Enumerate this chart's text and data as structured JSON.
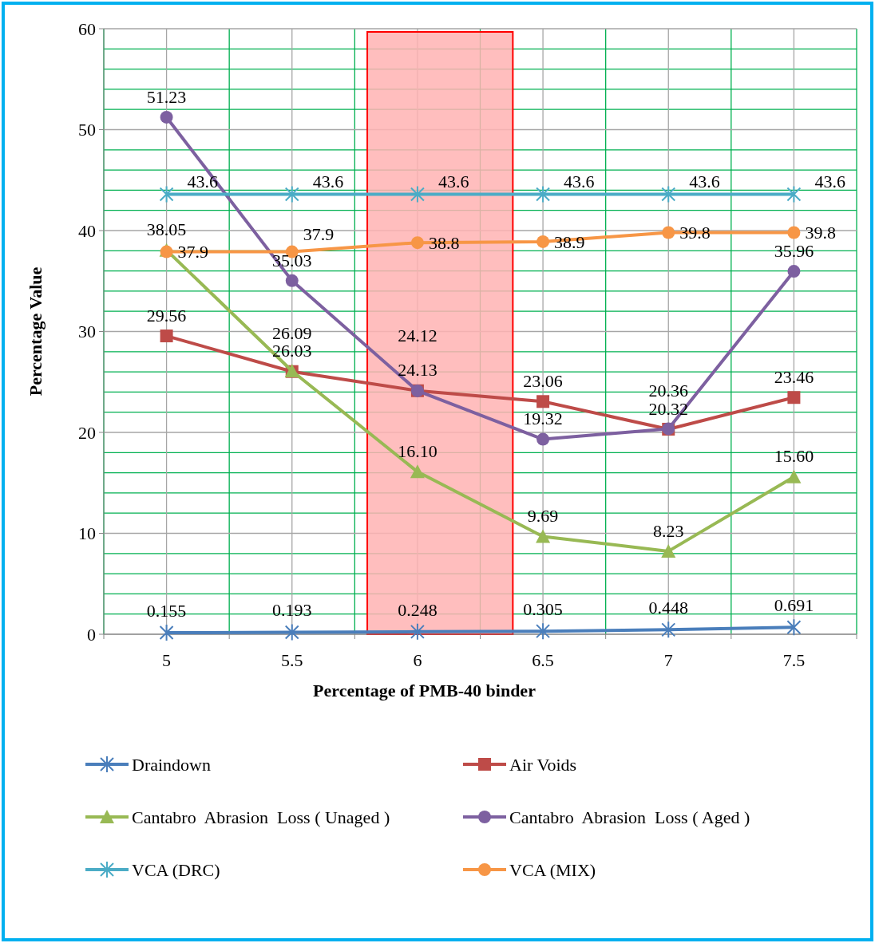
{
  "chart_data": {
    "type": "line",
    "xlabel": "Percentage of PMB-40 binder",
    "ylabel": "Percentage Value",
    "x": [
      5,
      5.5,
      6,
      6.5,
      7,
      7.5
    ],
    "xlim": [
      4.75,
      7.75
    ],
    "xticks": [
      {
        "value": 4.75,
        "label": null
      },
      5,
      {
        "value": 5.25,
        "label": null
      },
      5.5,
      {
        "value": 5.75,
        "label": null
      },
      6,
      {
        "value": 6.25,
        "label": null
      },
      6.5,
      {
        "value": 6.75,
        "label": null
      },
      7,
      {
        "value": 7.25,
        "label": null
      },
      7.5,
      {
        "value": 7.75,
        "label": null
      }
    ],
    "ylim": [
      0,
      60
    ],
    "yticks": [
      0,
      {
        "value": 2,
        "label": null
      },
      {
        "value": 4,
        "label": null
      },
      {
        "value": 6,
        "label": null
      },
      {
        "value": 8,
        "label": null
      },
      10,
      {
        "value": 12,
        "label": null
      },
      {
        "value": 14,
        "label": null
      },
      {
        "value": 16,
        "label": null
      },
      {
        "value": 18,
        "label": null
      },
      20,
      {
        "value": 22,
        "label": null
      },
      {
        "value": 24,
        "label": null
      },
      {
        "value": 26,
        "label": null
      },
      {
        "value": 28,
        "label": null
      },
      30,
      {
        "value": 32,
        "label": null
      },
      {
        "value": 34,
        "label": null
      },
      {
        "value": 36,
        "label": null
      },
      {
        "value": 38,
        "label": null
      },
      40,
      {
        "value": 42,
        "label": null
      },
      {
        "value": 44,
        "label": null
      },
      {
        "value": 46,
        "label": null
      },
      {
        "value": 48,
        "label": null
      },
      50,
      {
        "value": 52,
        "label": null
      },
      {
        "value": 54,
        "label": null
      },
      {
        "value": 56,
        "label": null
      },
      {
        "value": 58,
        "label": null
      },
      60
    ],
    "grid": true,
    "legend": "bottom",
    "data_labels": true,
    "bands": [
      {
        "axis": "x",
        "from": 5.8,
        "to": 6.38,
        "color": "#ffb3b3"
      }
    ],
    "series": [
      {
        "name": "Draindown",
        "color": "#4a7ebb",
        "marker": "cross",
        "values": [
          0.155,
          0.193,
          0.248,
          0.305,
          0.448,
          0.691
        ],
        "value_labels": [
          "0.155",
          "0.193",
          "0.248",
          "0.305",
          "0.448",
          "0.691"
        ]
      },
      {
        "name": "Air Voids",
        "color": "#be4b48",
        "marker": "square",
        "values": [
          29.56,
          26.03,
          24.13,
          23.06,
          20.32,
          23.46
        ],
        "value_labels": [
          "29.56",
          "26.03",
          "24.13",
          "23.06",
          "20.32",
          "23.46"
        ]
      },
      {
        "name": "Cantabro  Abrasion  Loss ( Unaged )",
        "color": "#98b954",
        "marker": "triangle",
        "values": [
          38.05,
          26.09,
          16.1,
          9.69,
          8.23,
          15.6
        ],
        "value_labels": [
          "38.05",
          "26.09",
          "16.10",
          "9.69",
          "8.23",
          "15.60"
        ]
      },
      {
        "name": "Cantabro  Abrasion  Loss ( Aged )",
        "color": "#7d60a0",
        "marker": "circle",
        "values": [
          51.23,
          35.03,
          24.12,
          19.32,
          20.36,
          35.96
        ],
        "value_labels": [
          "51.23",
          "35.03",
          "24.12",
          "19.32",
          "20.36",
          "35.96"
        ]
      },
      {
        "name": "VCA (DRC)",
        "color": "#4bacc6",
        "marker": "cross",
        "values": [
          43.6,
          43.6,
          43.6,
          43.6,
          43.6,
          43.6
        ],
        "value_labels": [
          "43.6",
          "43.6",
          "43.6",
          "43.6",
          "43.6",
          "43.6"
        ]
      },
      {
        "name": "VCA (MIX)",
        "color": "#f79646",
        "marker": "circle",
        "values": [
          37.9,
          37.9,
          38.8,
          38.9,
          39.8,
          39.8
        ],
        "value_labels": [
          "37.9",
          "37.9",
          "38.8",
          "38.9",
          "39.8",
          "39.8"
        ]
      }
    ]
  }
}
